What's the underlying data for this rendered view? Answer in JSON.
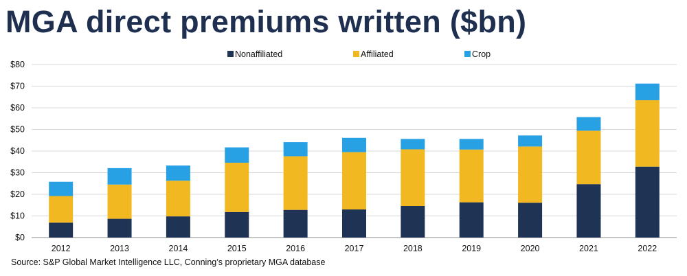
{
  "title": "MGA direct premiums written ($bn)",
  "source": "Source: S&P Global Market Intelligence LLC, Conning’s proprietary MGA database",
  "colors": {
    "title": "#1e2f50",
    "Nonaffiliated": "#1f3354",
    "Affiliated": "#f2b822",
    "Crop": "#28a1e4",
    "gridline": "#d9d9d9",
    "axis": "#8c8c8c"
  },
  "chart_data": {
    "type": "bar",
    "stacked": true,
    "categories": [
      "2012",
      "2013",
      "2014",
      "2015",
      "2016",
      "2017",
      "2018",
      "2019",
      "2020",
      "2021",
      "2022"
    ],
    "series": [
      {
        "name": "Nonaffiliated",
        "values": [
          6.9,
          8.7,
          9.8,
          11.8,
          12.8,
          13.0,
          14.6,
          16.3,
          16.1,
          24.7,
          32.8
        ]
      },
      {
        "name": "Affiliated",
        "values": [
          12.3,
          15.8,
          16.5,
          22.8,
          24.8,
          26.5,
          26.2,
          24.4,
          26.0,
          24.7,
          30.7
        ]
      },
      {
        "name": "Crop",
        "values": [
          6.6,
          7.6,
          7.0,
          7.1,
          6.5,
          6.6,
          4.8,
          4.9,
          5.1,
          6.3,
          7.7
        ]
      }
    ],
    "ylim": [
      0,
      80
    ],
    "yticks": [
      0,
      10,
      20,
      30,
      40,
      50,
      60,
      70,
      80
    ],
    "ytick_labels": [
      "$0",
      "$10",
      "$20",
      "$30",
      "$40",
      "$50",
      "$60",
      "$70",
      "$80"
    ],
    "grid": true,
    "legend_position": "top-center"
  }
}
